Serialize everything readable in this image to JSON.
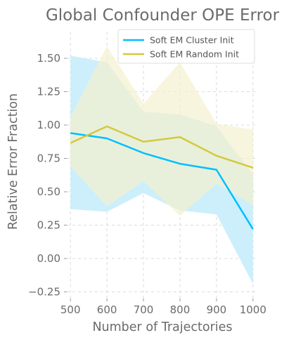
{
  "chart_data": {
    "type": "line",
    "title": "Global Confounder OPE Error",
    "xlabel": "Number of Trajectories",
    "ylabel": "Relative Error Fraction",
    "x": [
      500,
      600,
      700,
      800,
      900,
      1000
    ],
    "xticks": [
      "500",
      "600",
      "700",
      "800",
      "900",
      "1000"
    ],
    "yticks": [
      "−0.25",
      "0.00",
      "0.25",
      "0.50",
      "0.75",
      "1.00",
      "1.25",
      "1.50"
    ],
    "ytick_values": [
      -0.25,
      0.0,
      0.25,
      0.5,
      0.75,
      1.0,
      1.25,
      1.5
    ],
    "xlim": [
      490,
      1010
    ],
    "ylim": [
      -0.3,
      1.7
    ],
    "grid": true,
    "legend_position": "top-right",
    "series": [
      {
        "name": "Soft EM Cluster Init",
        "color": "#00bfff",
        "band_color": "#cceffb",
        "values": [
          0.94,
          0.9,
          0.79,
          0.71,
          0.665,
          0.22
        ],
        "upper": [
          1.52,
          1.47,
          1.1,
          1.08,
          0.99,
          0.63
        ],
        "lower": [
          0.37,
          0.35,
          0.49,
          0.36,
          0.33,
          -0.19
        ]
      },
      {
        "name": "Soft EM Random Init",
        "color": "#d4c93c",
        "band_color": "#f3f1cf",
        "values": [
          0.865,
          0.99,
          0.875,
          0.91,
          0.77,
          0.68
        ],
        "upper": [
          1.06,
          1.59,
          1.16,
          1.47,
          1.01,
          0.965
        ],
        "lower": [
          0.69,
          0.39,
          0.58,
          0.32,
          0.56,
          0.4
        ]
      }
    ]
  }
}
